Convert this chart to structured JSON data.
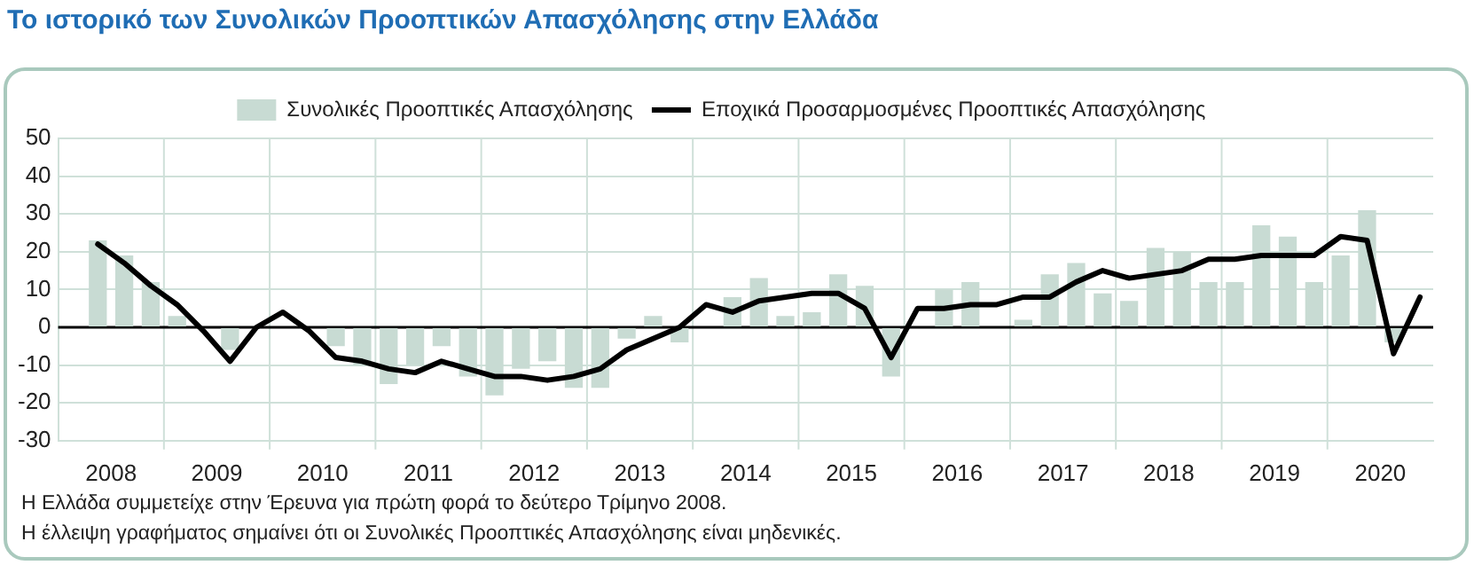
{
  "chart_data": {
    "type": "bar",
    "title": "Το ιστορικό των Συνολικών Προοπτικών Απασχόλησης στην Ελλάδα",
    "x": [
      2008.375,
      2008.625,
      2008.875,
      2009.125,
      2009.375,
      2009.625,
      2009.875,
      2010.125,
      2010.375,
      2010.625,
      2010.875,
      2011.125,
      2011.375,
      2011.625,
      2011.875,
      2012.125,
      2012.375,
      2012.625,
      2012.875,
      2013.125,
      2013.375,
      2013.625,
      2013.875,
      2014.125,
      2014.375,
      2014.625,
      2014.875,
      2015.125,
      2015.375,
      2015.625,
      2015.875,
      2016.125,
      2016.375,
      2016.625,
      2016.875,
      2017.125,
      2017.375,
      2017.625,
      2017.875,
      2018.125,
      2018.375,
      2018.625,
      2018.875,
      2019.125,
      2019.375,
      2019.625,
      2019.875,
      2020.125,
      2020.375,
      2020.625,
      2020.875
    ],
    "series": [
      {
        "name": "Συνολικές Προοπτικές Απασχόλησης",
        "color": "#c8dbd3",
        "values": [
          23,
          19,
          12,
          3,
          0,
          -6,
          0,
          0,
          0,
          -5,
          -10,
          -15,
          -10,
          -5,
          -13,
          -18,
          -11,
          -9,
          -16,
          -16,
          -3,
          3,
          -4,
          0,
          8,
          13,
          3,
          4,
          14,
          11,
          -13,
          0,
          10,
          12,
          0,
          2,
          14,
          17,
          9,
          7,
          21,
          20,
          12,
          12,
          27,
          24,
          12,
          19,
          31,
          -4,
          0
        ]
      },
      {
        "name": "Εποχικά Προσαρμοσμένες Προοπτικές Απασχόλησης",
        "type": "line",
        "color": "#000000",
        "values": [
          22,
          17,
          11,
          6,
          -1,
          -9,
          0,
          4,
          -1,
          -8,
          -9,
          -11,
          -12,
          -9,
          -11,
          -13,
          -13,
          -14,
          -13,
          -11,
          -6,
          -3,
          0,
          6,
          4,
          7,
          8,
          9,
          9,
          5,
          -8,
          5,
          5,
          6,
          6,
          8,
          8,
          12,
          15,
          13,
          14,
          15,
          18,
          18,
          19,
          19,
          19,
          24,
          23,
          -7,
          8
        ]
      }
    ],
    "xlim": [
      2008,
      2021
    ],
    "xticks": [
      {
        "value": 2008.5,
        "label": "2008"
      },
      {
        "value": 2009,
        "label": null
      },
      {
        "value": 2009.5,
        "label": "2009"
      },
      {
        "value": 2010,
        "label": null
      },
      {
        "value": 2010.5,
        "label": "2010"
      },
      {
        "value": 2011,
        "label": null
      },
      {
        "value": 2011.5,
        "label": "2011"
      },
      {
        "value": 2012,
        "label": null
      },
      {
        "value": 2012.5,
        "label": "2012"
      },
      {
        "value": 2013,
        "label": null
      },
      {
        "value": 2013.5,
        "label": "2013"
      },
      {
        "value": 2014,
        "label": null
      },
      {
        "value": 2014.5,
        "label": "2014"
      },
      {
        "value": 2015,
        "label": null
      },
      {
        "value": 2015.5,
        "label": "2015"
      },
      {
        "value": 2016,
        "label": null
      },
      {
        "value": 2016.5,
        "label": "2016"
      },
      {
        "value": 2017,
        "label": null
      },
      {
        "value": 2017.5,
        "label": "2017"
      },
      {
        "value": 2018,
        "label": null
      },
      {
        "value": 2018.5,
        "label": "2018"
      },
      {
        "value": 2019,
        "label": null
      },
      {
        "value": 2019.5,
        "label": "2019"
      },
      {
        "value": 2020,
        "label": null
      },
      {
        "value": 2020.5,
        "label": "2020"
      }
    ],
    "ylim": [
      -30,
      50
    ],
    "yticks": [
      -30,
      -20,
      -10,
      0,
      10,
      20,
      30,
      40,
      50
    ],
    "ref_lines": [
      {
        "axis": "y",
        "value": 0,
        "color": "#000000"
      }
    ],
    "grid": true,
    "legend": "top",
    "marker": "none",
    "line_style": "solid",
    "annotations": [
      "Η Ελλάδα συμμετείχε στην Έρευνα για πρώτη φορά το δεύτερο Τρίμηνο 2008.",
      "Η έλλειψη γραφήματος σημαίνει ότι οι Συνολικές Προοπτικές Απασχόλησης είναι μηδενικές."
    ]
  }
}
